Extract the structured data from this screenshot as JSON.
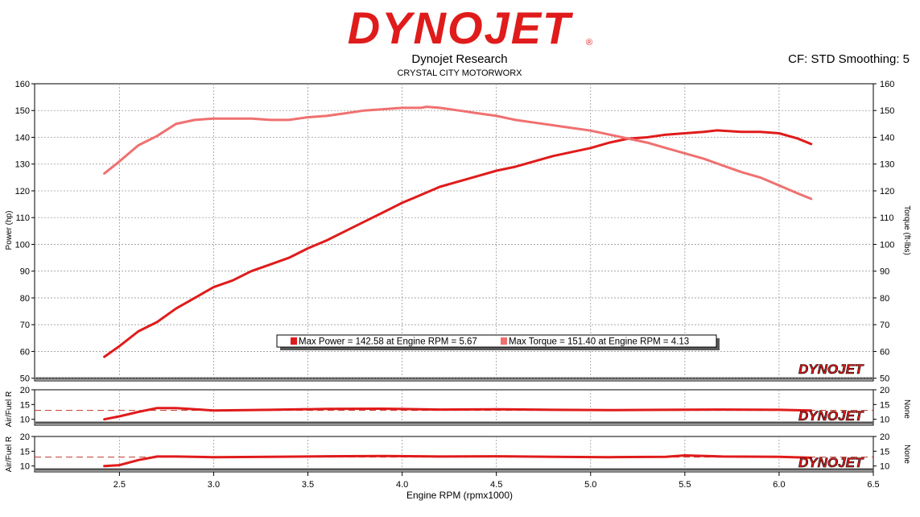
{
  "header": {
    "logo_text": "DYNOJET",
    "logo_symbol": "®",
    "title": "Dynojet Research",
    "subtitle": "CRYSTAL CITY MOTORWORX",
    "cf_label": "CF: STD Smoothing: 5"
  },
  "colors": {
    "power": "#e01b1b",
    "torque": "#f07070",
    "grid": "#9a9a9a",
    "logo": "#e01b1b"
  },
  "watermark": "DYNOJET",
  "legend": [
    {
      "label": "Max Power = 142.58 at Engine RPM = 5.67",
      "color": "#e01b1b"
    },
    {
      "label": "Max Torque = 151.40 at Engine RPM = 4.13",
      "color": "#f07070"
    }
  ],
  "chart_data": [
    {
      "type": "line",
      "title": "",
      "xlabel": "Engine RPM (rpmx1000)",
      "ylabel_left": "Power (hp)",
      "ylabel_right": "Torque (ft-lbs)",
      "xlim": [
        2.05,
        6.5
      ],
      "ylim": [
        49,
        160
      ],
      "yticks": [
        50,
        60,
        70,
        80,
        90,
        100,
        110,
        120,
        130,
        140,
        150,
        160
      ],
      "grid": true,
      "series": [
        {
          "name": "Max Power",
          "x": [
            2.42,
            2.5,
            2.6,
            2.7,
            2.8,
            2.9,
            3.0,
            3.1,
            3.2,
            3.3,
            3.4,
            3.5,
            3.6,
            3.7,
            3.8,
            3.9,
            4.0,
            4.1,
            4.2,
            4.3,
            4.4,
            4.5,
            4.6,
            4.7,
            4.8,
            4.9,
            5.0,
            5.1,
            5.2,
            5.3,
            5.4,
            5.5,
            5.6,
            5.67,
            5.8,
            5.9,
            6.0,
            6.1,
            6.17
          ],
          "values": [
            58,
            62,
            67.5,
            71,
            76,
            80,
            84,
            86.5,
            90,
            92.5,
            95,
            98.5,
            101.5,
            105,
            108.5,
            112,
            115.5,
            118.5,
            121.5,
            123.5,
            125.5,
            127.5,
            129,
            131,
            133,
            134.5,
            136,
            138,
            139.5,
            140,
            141,
            141.5,
            142,
            142.58,
            142,
            142,
            141.5,
            139.5,
            137.5
          ]
        },
        {
          "name": "Max Torque",
          "x": [
            2.42,
            2.5,
            2.6,
            2.7,
            2.8,
            2.9,
            3.0,
            3.1,
            3.2,
            3.3,
            3.4,
            3.5,
            3.6,
            3.7,
            3.8,
            3.9,
            4.0,
            4.1,
            4.13,
            4.2,
            4.3,
            4.4,
            4.5,
            4.6,
            4.7,
            4.8,
            4.9,
            5.0,
            5.1,
            5.2,
            5.3,
            5.4,
            5.5,
            5.6,
            5.7,
            5.8,
            5.9,
            6.0,
            6.1,
            6.17
          ],
          "values": [
            126.5,
            131,
            137,
            140.5,
            145,
            146.5,
            147,
            147,
            147,
            146.5,
            146.5,
            147.5,
            148,
            149,
            150,
            150.5,
            151,
            151,
            151.4,
            151,
            150,
            149,
            148,
            146.5,
            145.5,
            144.5,
            143.5,
            142.5,
            141,
            139.5,
            138,
            136,
            134,
            132,
            129.5,
            127,
            125,
            122,
            119,
            117
          ]
        }
      ]
    },
    {
      "type": "line",
      "title": "",
      "xlabel": "",
      "ylabel_left": "Air/Fuel R",
      "ylabel_right": "None",
      "xlim": [
        2.05,
        6.5
      ],
      "ylim": [
        8,
        20
      ],
      "yticks": [
        10,
        15,
        20
      ],
      "reference_line": 13,
      "series": [
        {
          "name": "",
          "x": [
            2.42,
            2.5,
            2.6,
            2.7,
            2.8,
            3.0,
            3.3,
            3.6,
            3.9,
            4.2,
            4.5,
            4.8,
            5.1,
            5.4,
            5.7,
            6.0,
            6.17
          ],
          "values": [
            10,
            11,
            12.5,
            13.8,
            13.8,
            13,
            13.2,
            13.5,
            13.6,
            13.3,
            13.4,
            13.2,
            13.1,
            13.2,
            13.3,
            13.2,
            13
          ]
        }
      ]
    },
    {
      "type": "line",
      "title": "",
      "xlabel": "Engine RPM (rpmx1000)",
      "ylabel_left": "Air/Fuel R",
      "ylabel_right": "None",
      "xlim": [
        2.05,
        6.5
      ],
      "ylim": [
        8,
        20
      ],
      "yticks": [
        10,
        15,
        20
      ],
      "xticks": [
        2.5,
        3.0,
        3.5,
        4.0,
        4.5,
        5.0,
        5.5,
        6.0,
        6.5
      ],
      "xticklabels": [
        "2.5",
        "3.0",
        "3.5",
        "4.0",
        "4.5",
        "5.0",
        "5.5",
        "6.0",
        "6.5"
      ],
      "reference_line": 13,
      "series": [
        {
          "name": "",
          "x": [
            2.42,
            2.5,
            2.6,
            2.7,
            2.8,
            3.0,
            3.3,
            3.6,
            3.9,
            4.2,
            4.5,
            4.8,
            5.1,
            5.4,
            5.5,
            5.7,
            6.0,
            6.17
          ],
          "values": [
            10,
            10.3,
            12,
            13.2,
            13.2,
            13,
            13.1,
            13.3,
            13.4,
            13.2,
            13.3,
            13.1,
            13,
            13.1,
            13.6,
            13.2,
            13.1,
            12.8
          ]
        }
      ]
    }
  ]
}
